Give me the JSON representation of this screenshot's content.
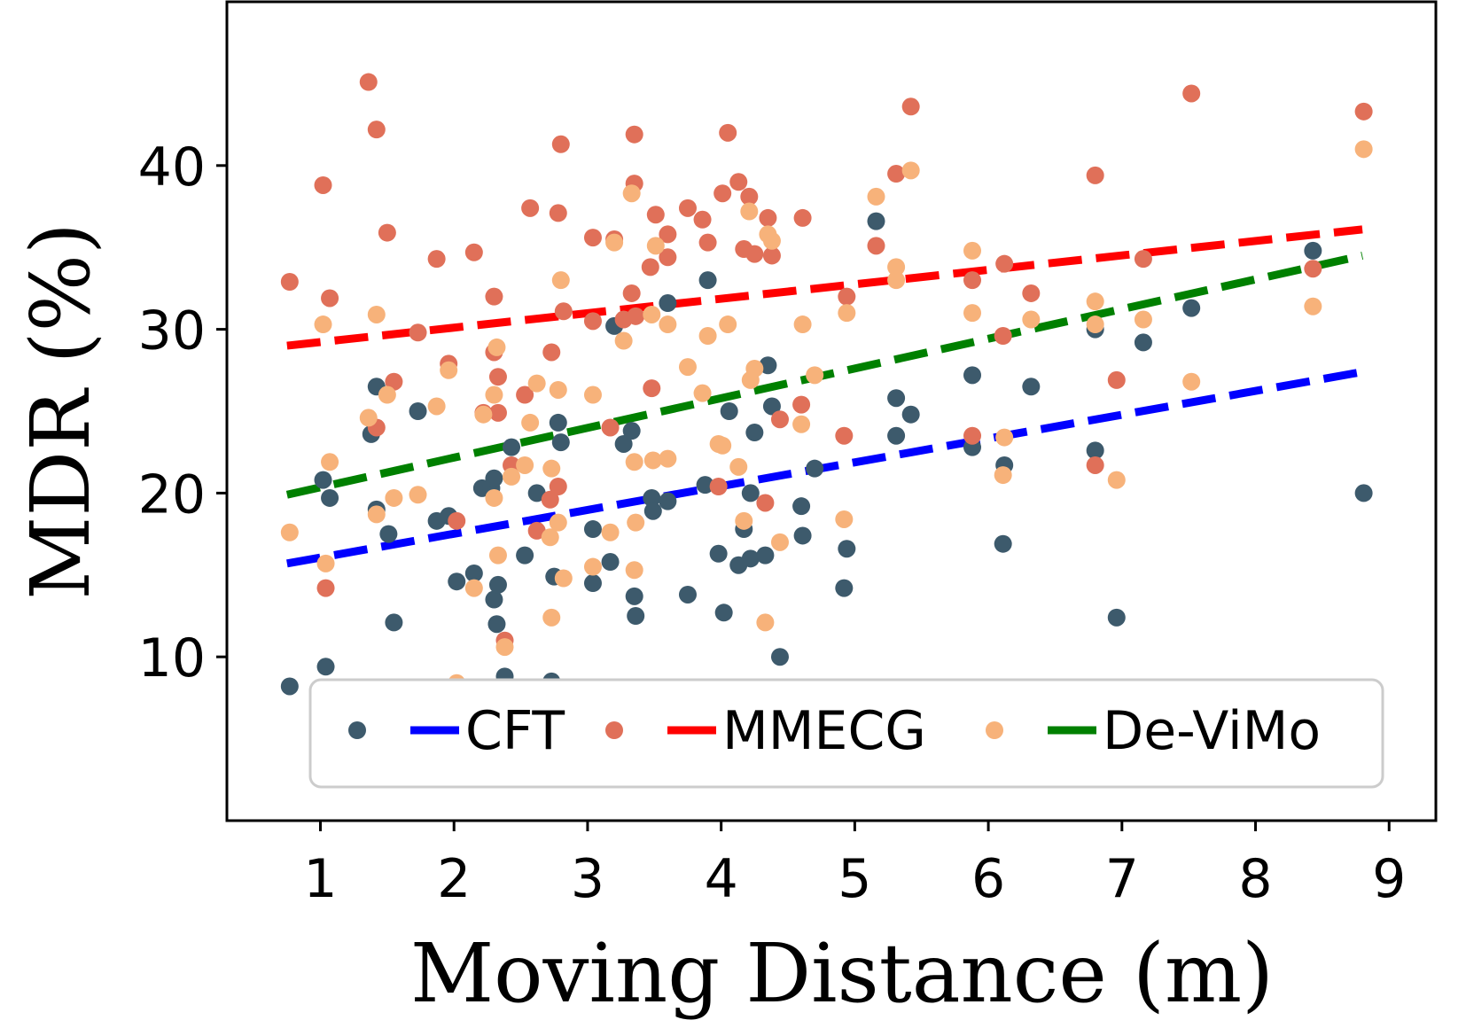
{
  "chart_data": {
    "type": "scatter",
    "title": "",
    "xlabel": "Moving Distance (m)",
    "ylabel": "MDR (%)",
    "xlim": [
      0.3,
      9.35
    ],
    "ylim": [
      0,
      50
    ],
    "xticks": [
      1,
      2,
      3,
      4,
      5,
      6,
      7,
      8,
      9
    ],
    "yticks": [
      10,
      20,
      30,
      40
    ],
    "grid": false,
    "legend_position": "bottom-center",
    "colors": {
      "CFT_points": "#3d5a6c",
      "CFT_line": "#0000ff",
      "MMECG_points": "#e07059",
      "MMECG_line": "#ff0000",
      "DeViMo_points": "#f7b27a",
      "DeViMo_line": "#008000"
    },
    "series": [
      {
        "name": "CFT",
        "legend_label": "CFT",
        "trend": {
          "x": [
            0.75,
            8.8
          ],
          "y": [
            15.7,
            27.4
          ]
        },
        "points": [
          [
            0.77,
            8.2
          ],
          [
            1.02,
            20.8
          ],
          [
            1.04,
            9.4
          ],
          [
            1.07,
            19.7
          ],
          [
            1.38,
            23.6
          ],
          [
            1.42,
            26.5
          ],
          [
            1.42,
            19.0
          ],
          [
            1.51,
            17.5
          ],
          [
            1.55,
            12.1
          ],
          [
            1.73,
            25.0
          ],
          [
            1.87,
            18.3
          ],
          [
            1.96,
            18.6
          ],
          [
            2.02,
            14.6
          ],
          [
            2.15,
            15.1
          ],
          [
            2.21,
            20.3
          ],
          [
            2.28,
            20.3
          ],
          [
            2.3,
            13.5
          ],
          [
            2.3,
            20.9
          ],
          [
            2.32,
            12.0
          ],
          [
            2.33,
            14.4
          ],
          [
            2.38,
            8.8
          ],
          [
            2.43,
            22.8
          ],
          [
            2.53,
            16.2
          ],
          [
            2.62,
            20.0
          ],
          [
            2.73,
            8.5
          ],
          [
            2.75,
            14.9
          ],
          [
            2.78,
            24.3
          ],
          [
            2.8,
            23.1
          ],
          [
            3.04,
            17.8
          ],
          [
            3.04,
            14.5
          ],
          [
            3.17,
            15.8
          ],
          [
            3.2,
            30.2
          ],
          [
            3.27,
            23.0
          ],
          [
            3.33,
            23.8
          ],
          [
            3.35,
            13.7
          ],
          [
            3.36,
            12.5
          ],
          [
            3.48,
            19.7
          ],
          [
            3.49,
            18.9
          ],
          [
            3.6,
            31.6
          ],
          [
            3.6,
            19.5
          ],
          [
            3.75,
            13.8
          ],
          [
            3.88,
            20.5
          ],
          [
            3.9,
            33.0
          ],
          [
            3.98,
            16.3
          ],
          [
            4.02,
            12.7
          ],
          [
            4.06,
            25.0
          ],
          [
            4.13,
            15.6
          ],
          [
            4.17,
            17.8
          ],
          [
            4.22,
            16.0
          ],
          [
            4.22,
            20.0
          ],
          [
            4.25,
            23.7
          ],
          [
            4.33,
            16.2
          ],
          [
            4.35,
            27.8
          ],
          [
            4.38,
            25.3
          ],
          [
            4.44,
            10.0
          ],
          [
            4.6,
            19.2
          ],
          [
            4.61,
            17.4
          ],
          [
            4.7,
            21.5
          ],
          [
            4.92,
            14.2
          ],
          [
            4.94,
            16.6
          ],
          [
            5.16,
            36.6
          ],
          [
            5.31,
            25.8
          ],
          [
            5.31,
            23.5
          ],
          [
            5.42,
            24.8
          ],
          [
            5.88,
            22.8
          ],
          [
            5.88,
            27.2
          ],
          [
            6.11,
            16.9
          ],
          [
            6.12,
            21.7
          ],
          [
            6.32,
            26.5
          ],
          [
            6.8,
            30.0
          ],
          [
            6.8,
            22.6
          ],
          [
            6.96,
            12.4
          ],
          [
            7.16,
            29.2
          ],
          [
            7.52,
            31.3
          ],
          [
            8.43,
            34.8
          ],
          [
            8.81,
            20.0
          ]
        ]
      },
      {
        "name": "MMECG",
        "legend_label": "MMECG",
        "trend": {
          "x": [
            0.75,
            8.8
          ],
          "y": [
            29.0,
            36.1
          ]
        },
        "points": [
          [
            0.77,
            32.9
          ],
          [
            1.02,
            38.8
          ],
          [
            1.04,
            14.2
          ],
          [
            1.07,
            31.9
          ],
          [
            1.36,
            45.1
          ],
          [
            1.42,
            42.2
          ],
          [
            1.42,
            24.0
          ],
          [
            1.5,
            35.9
          ],
          [
            1.55,
            26.8
          ],
          [
            1.73,
            29.8
          ],
          [
            1.87,
            34.3
          ],
          [
            1.96,
            27.9
          ],
          [
            2.02,
            18.3
          ],
          [
            2.15,
            34.7
          ],
          [
            2.22,
            24.9
          ],
          [
            2.3,
            32.0
          ],
          [
            2.3,
            28.6
          ],
          [
            2.33,
            24.9
          ],
          [
            2.33,
            27.1
          ],
          [
            2.38,
            11.0
          ],
          [
            2.43,
            21.7
          ],
          [
            2.53,
            26.0
          ],
          [
            2.57,
            37.4
          ],
          [
            2.62,
            17.7
          ],
          [
            2.72,
            19.6
          ],
          [
            2.73,
            28.6
          ],
          [
            2.78,
            37.1
          ],
          [
            2.78,
            20.4
          ],
          [
            2.8,
            41.3
          ],
          [
            2.82,
            31.1
          ],
          [
            3.04,
            35.6
          ],
          [
            3.04,
            30.5
          ],
          [
            3.17,
            24.0
          ],
          [
            3.2,
            35.5
          ],
          [
            3.27,
            30.6
          ],
          [
            3.33,
            32.2
          ],
          [
            3.35,
            41.9
          ],
          [
            3.35,
            38.9
          ],
          [
            3.36,
            30.8
          ],
          [
            3.47,
            33.8
          ],
          [
            3.48,
            26.4
          ],
          [
            3.51,
            37.0
          ],
          [
            3.6,
            35.8
          ],
          [
            3.6,
            34.4
          ],
          [
            3.75,
            37.4
          ],
          [
            3.86,
            36.7
          ],
          [
            3.9,
            35.3
          ],
          [
            3.98,
            20.4
          ],
          [
            4.01,
            38.3
          ],
          [
            4.05,
            42.0
          ],
          [
            4.13,
            39.0
          ],
          [
            4.17,
            34.9
          ],
          [
            4.21,
            38.1
          ],
          [
            4.25,
            34.6
          ],
          [
            4.33,
            19.4
          ],
          [
            4.35,
            36.8
          ],
          [
            4.38,
            34.5
          ],
          [
            4.44,
            24.5
          ],
          [
            4.6,
            25.4
          ],
          [
            4.61,
            36.8
          ],
          [
            4.92,
            23.5
          ],
          [
            4.94,
            32.0
          ],
          [
            5.16,
            35.1
          ],
          [
            5.31,
            39.5
          ],
          [
            5.42,
            43.6
          ],
          [
            5.88,
            33.0
          ],
          [
            5.88,
            23.5
          ],
          [
            6.11,
            29.6
          ],
          [
            6.12,
            34.0
          ],
          [
            6.32,
            32.2
          ],
          [
            6.8,
            21.7
          ],
          [
            6.8,
            39.4
          ],
          [
            6.96,
            26.9
          ],
          [
            7.16,
            34.3
          ],
          [
            7.52,
            44.4
          ],
          [
            8.43,
            33.7
          ],
          [
            8.81,
            43.3
          ]
        ]
      },
      {
        "name": "De-ViMo",
        "legend_label": "De-ViMo",
        "trend": {
          "x": [
            0.75,
            8.8
          ],
          "y": [
            19.9,
            34.5
          ]
        },
        "points": [
          [
            0.77,
            17.6
          ],
          [
            1.02,
            30.3
          ],
          [
            1.04,
            15.7
          ],
          [
            1.07,
            21.9
          ],
          [
            1.36,
            24.6
          ],
          [
            1.42,
            30.9
          ],
          [
            1.42,
            18.7
          ],
          [
            1.5,
            26.0
          ],
          [
            1.55,
            19.7
          ],
          [
            1.73,
            19.9
          ],
          [
            1.87,
            25.3
          ],
          [
            1.96,
            27.5
          ],
          [
            2.02,
            8.4
          ],
          [
            2.15,
            14.2
          ],
          [
            2.22,
            24.8
          ],
          [
            2.3,
            26.0
          ],
          [
            2.3,
            19.7
          ],
          [
            2.32,
            28.9
          ],
          [
            2.33,
            16.2
          ],
          [
            2.38,
            10.6
          ],
          [
            2.43,
            21.0
          ],
          [
            2.53,
            21.7
          ],
          [
            2.57,
            24.3
          ],
          [
            2.62,
            26.7
          ],
          [
            2.72,
            17.3
          ],
          [
            2.73,
            12.4
          ],
          [
            2.73,
            21.5
          ],
          [
            2.78,
            18.2
          ],
          [
            2.78,
            26.3
          ],
          [
            2.8,
            33.0
          ],
          [
            2.82,
            14.8
          ],
          [
            3.04,
            26.0
          ],
          [
            3.04,
            15.5
          ],
          [
            3.17,
            17.6
          ],
          [
            3.2,
            35.3
          ],
          [
            3.27,
            29.3
          ],
          [
            3.33,
            38.3
          ],
          [
            3.35,
            21.9
          ],
          [
            3.35,
            15.3
          ],
          [
            3.36,
            18.2
          ],
          [
            3.48,
            30.9
          ],
          [
            3.49,
            22.0
          ],
          [
            3.51,
            35.1
          ],
          [
            3.6,
            30.3
          ],
          [
            3.6,
            22.1
          ],
          [
            3.75,
            27.7
          ],
          [
            3.86,
            26.1
          ],
          [
            3.9,
            29.6
          ],
          [
            3.98,
            23.0
          ],
          [
            4.01,
            22.9
          ],
          [
            4.05,
            30.3
          ],
          [
            4.13,
            21.6
          ],
          [
            4.17,
            18.3
          ],
          [
            4.21,
            37.2
          ],
          [
            4.22,
            26.9
          ],
          [
            4.25,
            27.6
          ],
          [
            4.33,
            12.1
          ],
          [
            4.35,
            35.8
          ],
          [
            4.38,
            35.4
          ],
          [
            4.44,
            17.0
          ],
          [
            4.6,
            24.2
          ],
          [
            4.61,
            30.3
          ],
          [
            4.7,
            27.2
          ],
          [
            4.92,
            18.4
          ],
          [
            4.94,
            31.0
          ],
          [
            5.16,
            38.1
          ],
          [
            5.31,
            33.8
          ],
          [
            5.31,
            33.0
          ],
          [
            5.42,
            39.7
          ],
          [
            5.88,
            34.8
          ],
          [
            5.88,
            31.0
          ],
          [
            6.11,
            21.1
          ],
          [
            6.12,
            23.4
          ],
          [
            6.32,
            30.6
          ],
          [
            6.8,
            31.7
          ],
          [
            6.8,
            30.3
          ],
          [
            6.96,
            20.8
          ],
          [
            7.16,
            30.6
          ],
          [
            7.52,
            26.8
          ],
          [
            8.43,
            31.4
          ],
          [
            8.81,
            41.0
          ]
        ]
      }
    ]
  }
}
